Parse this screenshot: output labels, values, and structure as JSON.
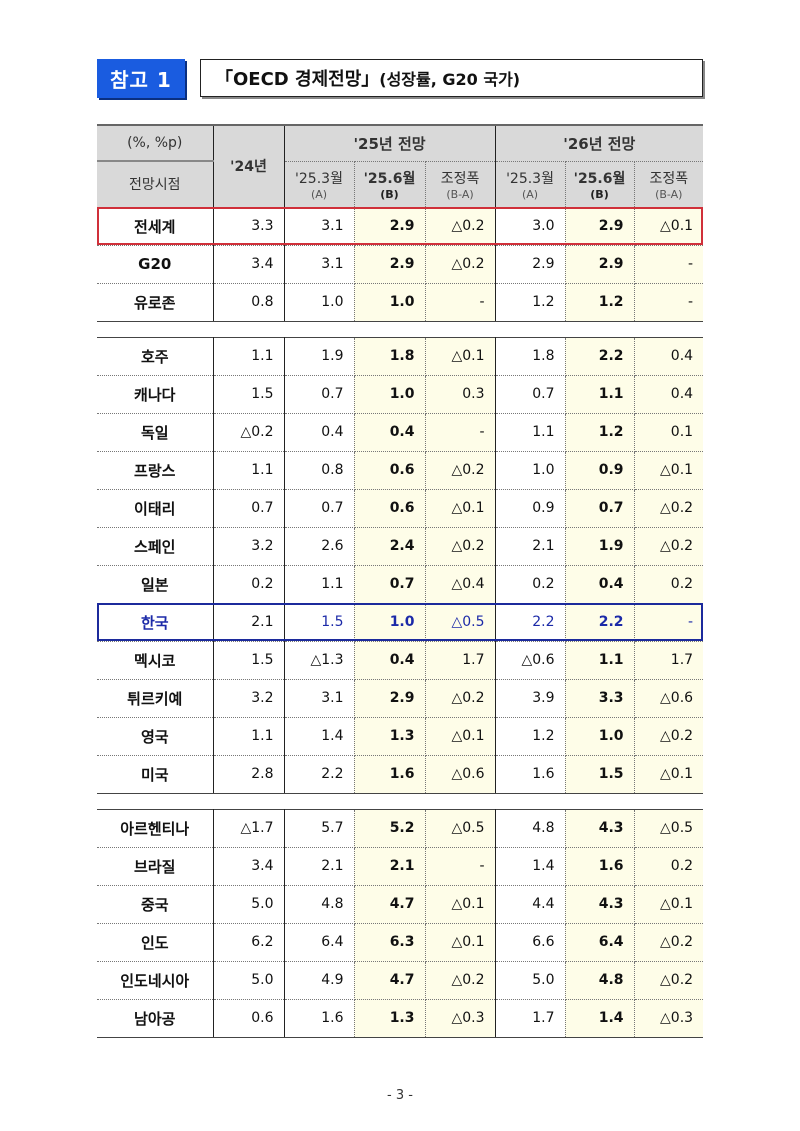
{
  "header": {
    "badge": "참고 1",
    "title_main": "「OECD 경제전망」",
    "title_sub": "(성장률, G20 국가)"
  },
  "table": {
    "unit_label": "(%, %p)",
    "row_header_label": "전망시점",
    "year_2024": "'24년",
    "groups": [
      {
        "label": "'25년 전망",
        "cols": [
          {
            "l1": "'25.3월",
            "l2": "(A)"
          },
          {
            "l1": "'25.6월",
            "l2": "(B)"
          },
          {
            "l1": "조정폭",
            "l2": "(B-A)"
          }
        ]
      },
      {
        "label": "'26년 전망",
        "cols": [
          {
            "l1": "'25.3월",
            "l2": "(A)"
          },
          {
            "l1": "'25.6월",
            "l2": "(B)"
          },
          {
            "l1": "조정폭",
            "l2": "(B-A)"
          }
        ]
      }
    ],
    "sections": [
      [
        {
          "name": "전세계",
          "v": [
            "3.3",
            "3.1",
            "2.9",
            "△0.2",
            "3.0",
            "2.9",
            "△0.1"
          ]
        },
        {
          "name": "G20",
          "v": [
            "3.4",
            "3.1",
            "2.9",
            "△0.2",
            "2.9",
            "2.9",
            "-"
          ]
        },
        {
          "name": "유로존",
          "v": [
            "0.8",
            "1.0",
            "1.0",
            "-",
            "1.2",
            "1.2",
            "-"
          ]
        }
      ],
      [
        {
          "name": "호주",
          "v": [
            "1.1",
            "1.9",
            "1.8",
            "△0.1",
            "1.8",
            "2.2",
            "0.4"
          ]
        },
        {
          "name": "캐나다",
          "v": [
            "1.5",
            "0.7",
            "1.0",
            "0.3",
            "0.7",
            "1.1",
            "0.4"
          ]
        },
        {
          "name": "독일",
          "v": [
            "△0.2",
            "0.4",
            "0.4",
            "-",
            "1.1",
            "1.2",
            "0.1"
          ]
        },
        {
          "name": "프랑스",
          "v": [
            "1.1",
            "0.8",
            "0.6",
            "△0.2",
            "1.0",
            "0.9",
            "△0.1"
          ]
        },
        {
          "name": "이태리",
          "v": [
            "0.7",
            "0.7",
            "0.6",
            "△0.1",
            "0.9",
            "0.7",
            "△0.2"
          ]
        },
        {
          "name": "스페인",
          "v": [
            "3.2",
            "2.6",
            "2.4",
            "△0.2",
            "2.1",
            "1.9",
            "△0.2"
          ]
        },
        {
          "name": "일본",
          "v": [
            "0.2",
            "1.1",
            "0.7",
            "△0.4",
            "0.2",
            "0.4",
            "0.2"
          ]
        },
        {
          "name": "한국",
          "v": [
            "2.1",
            "1.5",
            "1.0",
            "△0.5",
            "2.2",
            "2.2",
            "-"
          ]
        },
        {
          "name": "멕시코",
          "v": [
            "1.5",
            "△1.3",
            "0.4",
            "1.7",
            "△0.6",
            "1.1",
            "1.7"
          ]
        },
        {
          "name": "튀르키예",
          "v": [
            "3.2",
            "3.1",
            "2.9",
            "△0.2",
            "3.9",
            "3.3",
            "△0.6"
          ]
        },
        {
          "name": "영국",
          "v": [
            "1.1",
            "1.4",
            "1.3",
            "△0.1",
            "1.2",
            "1.0",
            "△0.2"
          ]
        },
        {
          "name": "미국",
          "v": [
            "2.8",
            "2.2",
            "1.6",
            "△0.6",
            "1.6",
            "1.5",
            "△0.1"
          ]
        }
      ],
      [
        {
          "name": "아르헨티나",
          "v": [
            "△1.7",
            "5.7",
            "5.2",
            "△0.5",
            "4.8",
            "4.3",
            "△0.5"
          ]
        },
        {
          "name": "브라질",
          "v": [
            "3.4",
            "2.1",
            "2.1",
            "-",
            "1.4",
            "1.6",
            "0.2"
          ]
        },
        {
          "name": "중국",
          "v": [
            "5.0",
            "4.8",
            "4.7",
            "△0.1",
            "4.4",
            "4.3",
            "△0.1"
          ]
        },
        {
          "name": "인도",
          "v": [
            "6.2",
            "6.4",
            "6.3",
            "△0.1",
            "6.6",
            "6.4",
            "△0.2"
          ]
        },
        {
          "name": "인도네시아",
          "v": [
            "5.0",
            "4.9",
            "4.7",
            "△0.2",
            "5.0",
            "4.8",
            "△0.2"
          ]
        },
        {
          "name": "남아공",
          "v": [
            "0.6",
            "1.6",
            "1.3",
            "△0.3",
            "1.7",
            "1.4",
            "△0.3"
          ]
        }
      ]
    ]
  },
  "highlight_colors": {
    "world_outline": "#d0303a",
    "korea_outline": "#1c2a9c",
    "korea_text": "#1c2aa8",
    "b_col_bg": "#fefde8",
    "badge_bg": "#1a5ce0"
  },
  "footer": {
    "page": "- 3 -"
  }
}
